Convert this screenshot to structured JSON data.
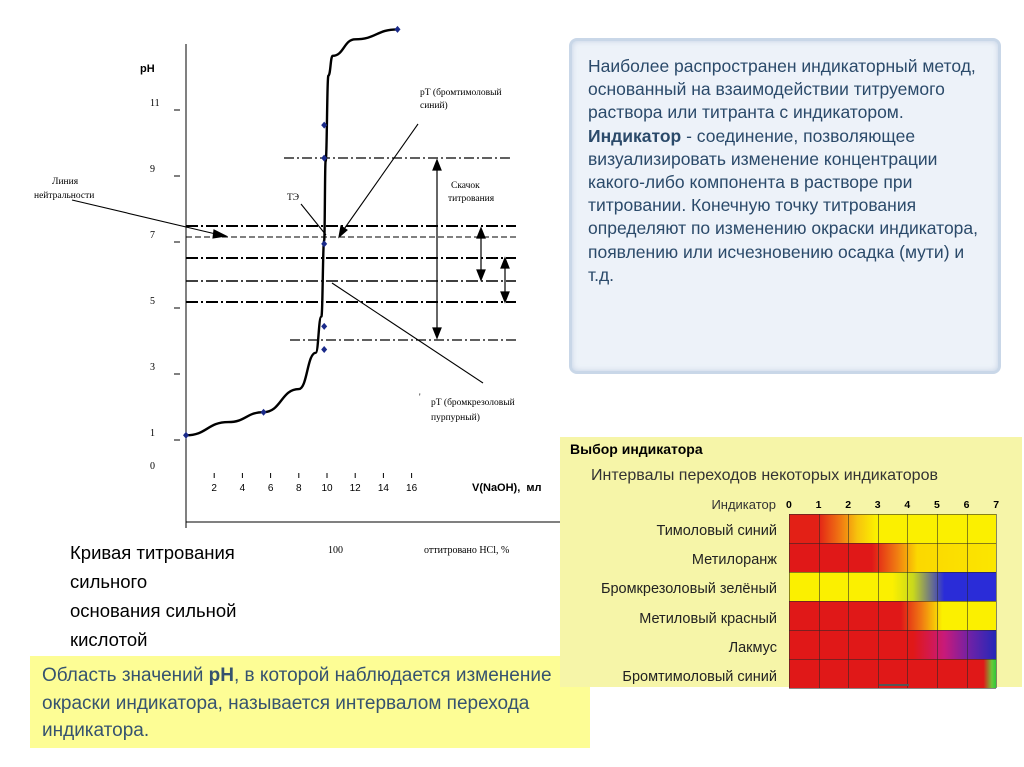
{
  "chart_data": {
    "type": "line",
    "title": "",
    "ylabel": "pH",
    "xlabel": "V(NaOH),  мл",
    "xlabel2": "оттитровано HCl, %",
    "x_ticks": [
      "2",
      "4",
      "6",
      "8",
      "10",
      "12",
      "14",
      "16"
    ],
    "y_ticks": [
      "0",
      "1",
      "3",
      "5",
      "7",
      "9",
      "11"
    ],
    "x2_tick": "100",
    "series": [
      {
        "x": [
          0,
          3,
          5.5,
          8,
          9.2,
          9.6,
          9.8,
          9.9,
          10.1,
          10.4,
          12,
          15
        ],
        "y": [
          0.9,
          1.3,
          1.6,
          2.3,
          3.4,
          4.5,
          6.8,
          9.2,
          11.8,
          12.4,
          12.9,
          13.2
        ]
      }
    ],
    "markers": [
      {
        "x": 0,
        "y": 0.9
      },
      {
        "x": 5.5,
        "y": 1.6
      },
      {
        "x": 9.8,
        "y": 3.5
      },
      {
        "x": 9.8,
        "y": 4.2
      },
      {
        "x": 9.8,
        "y": 6.7
      },
      {
        "x": 9.8,
        "y": 9.3
      },
      {
        "x": 9.8,
        "y": 10.3
      },
      {
        "x": 15,
        "y": 13.2
      }
    ],
    "annotations": {
      "neutral_line_label": [
        "Линия",
        "нейтральности"
      ],
      "equivalence_label": "ТЭ",
      "jump_label": [
        "Скачок",
        "титрования"
      ],
      "pt_bromothymol": [
        "рТ (бромтимоловый",
        "синий)"
      ],
      "pt_bromocresol": [
        "рТ (бромкрезоловый",
        "пурпурный)"
      ]
    }
  },
  "info_text": {
    "p1": "Наиболее распространен индикаторный метод, основанный на взаимодействии титруемого раствора или титранта с индикатором.",
    "term": "Индикатор",
    "p2": " - соединение, позволяющее визуализировать изменение концентрации какого-либо компонента в растворе при титровании. Конечную точку титрования определяют по изменению окраски индикатора, появлению или исчезновению осадка (мути) и т.д."
  },
  "caption": {
    "line1": "Кривая титрования",
    "line2": "сильного",
    "line3": "основания сильной",
    "line4": "кислотой"
  },
  "definition": {
    "before": "Область значений ",
    "term": "рН",
    "after": ", в которой наблюдается изменение окраски индикатора, называется интервалом перехода индикатора."
  },
  "indicators": {
    "title": "Выбор индикатора",
    "subtitle": "Интервалы переходов некоторых индикаторов",
    "header": "Индикатор",
    "ticks": [
      "0",
      "1",
      "2",
      "3",
      "4",
      "5",
      "6",
      "7"
    ],
    "rows": [
      {
        "name": "Тимоловый синий",
        "gradient": "linear-gradient(90deg,#e32016 0%,#e32016 14%,#f07a12 25%,#f7c30d 33%,#fbf000 42%,#fbf000 100%)"
      },
      {
        "name": "Метилоранж",
        "gradient": "linear-gradient(90deg,#e01818 0%,#e01818 40%,#f07a12 52%,#fbd800 62%,#fbe600 100%)"
      },
      {
        "name": "Бромкрезоловый зелёный",
        "gradient": "linear-gradient(90deg,#fbf000 0%,#fbf000 50%,#c8d81c 60%,#2a2cd8 75%,#2a2cd8 100%)"
      },
      {
        "name": "Метиловый красный",
        "gradient": "linear-gradient(90deg,#e01818 0%,#e01818 54%,#f07a12 64%,#fbf000 74%,#fbf000 100%)"
      },
      {
        "name": "Лакмус",
        "gradient": "linear-gradient(90deg,#e01818 0%,#e01818 60%,#c81a7a 75%,#6a22a8 88%,#2428b8 100%)"
      },
      {
        "name": "Бромтимоловый синий",
        "gradient": "linear-gradient(90deg,#e01818 0%,#e01818 94%,#6ac83a 98%,#2ec83a 100%)"
      }
    ]
  }
}
